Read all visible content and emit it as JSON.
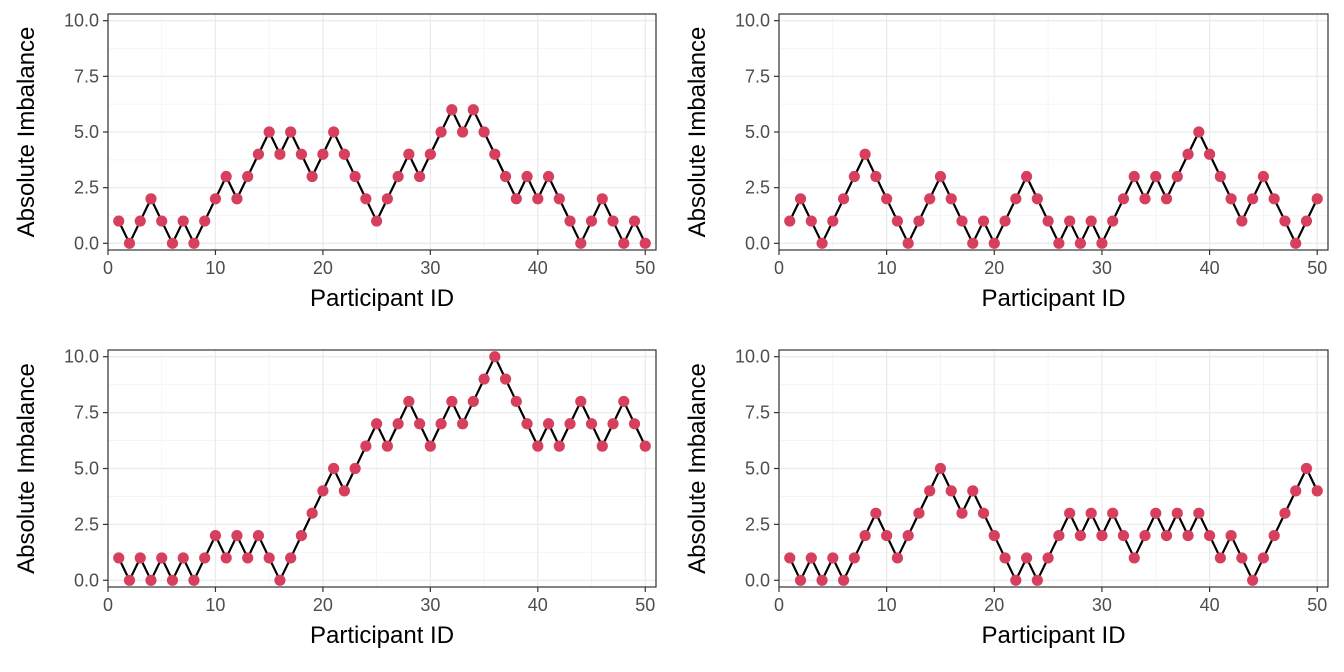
{
  "chart_data": [
    {
      "type": "line",
      "xlabel": "Participant ID",
      "ylabel": "Absolute Imbalance",
      "xlim": [
        0,
        51
      ],
      "ylim": [
        -0.3,
        10.3
      ],
      "x_ticks": [
        0,
        10,
        20,
        30,
        40,
        50
      ],
      "y_ticks": [
        0.0,
        2.5,
        5.0,
        7.5,
        10.0
      ],
      "y_tick_labels": [
        "0.0",
        "2.5",
        "5.0",
        "7.5",
        "10.0"
      ],
      "grid": true,
      "line_color": "#000000",
      "point_color": "#d6405e",
      "values": [
        1,
        0,
        1,
        2,
        1,
        0,
        1,
        0,
        1,
        2,
        3,
        2,
        3,
        4,
        5,
        4,
        5,
        4,
        3,
        4,
        5,
        4,
        3,
        2,
        1,
        2,
        3,
        4,
        3,
        4,
        5,
        6,
        5,
        6,
        5,
        4,
        3,
        2,
        3,
        2,
        3,
        2,
        1,
        0,
        1,
        2,
        1,
        0,
        1,
        0
      ]
    },
    {
      "type": "line",
      "xlabel": "Participant ID",
      "ylabel": "Absolute Imbalance",
      "xlim": [
        0,
        51
      ],
      "ylim": [
        -0.3,
        10.3
      ],
      "x_ticks": [
        0,
        10,
        20,
        30,
        40,
        50
      ],
      "y_ticks": [
        0.0,
        2.5,
        5.0,
        7.5,
        10.0
      ],
      "y_tick_labels": [
        "0.0",
        "2.5",
        "5.0",
        "7.5",
        "10.0"
      ],
      "grid": true,
      "line_color": "#000000",
      "point_color": "#d6405e",
      "values": [
        1,
        2,
        1,
        0,
        1,
        2,
        3,
        4,
        3,
        2,
        1,
        0,
        1,
        2,
        3,
        2,
        1,
        0,
        1,
        0,
        1,
        2,
        3,
        2,
        1,
        0,
        1,
        0,
        1,
        0,
        1,
        2,
        3,
        2,
        3,
        2,
        3,
        4,
        5,
        4,
        3,
        2,
        1,
        2,
        3,
        2,
        1,
        0,
        1,
        2
      ]
    },
    {
      "type": "line",
      "xlabel": "Participant ID",
      "ylabel": "Absolute Imbalance",
      "xlim": [
        0,
        51
      ],
      "ylim": [
        -0.3,
        10.3
      ],
      "x_ticks": [
        0,
        10,
        20,
        30,
        40,
        50
      ],
      "y_ticks": [
        0.0,
        2.5,
        5.0,
        7.5,
        10.0
      ],
      "y_tick_labels": [
        "0.0",
        "2.5",
        "5.0",
        "7.5",
        "10.0"
      ],
      "grid": true,
      "line_color": "#000000",
      "point_color": "#d6405e",
      "values": [
        1,
        0,
        1,
        0,
        1,
        0,
        1,
        0,
        1,
        2,
        1,
        2,
        1,
        2,
        1,
        0,
        1,
        2,
        3,
        4,
        5,
        4,
        5,
        6,
        7,
        6,
        7,
        8,
        7,
        6,
        7,
        8,
        7,
        8,
        9,
        10,
        9,
        8,
        7,
        6,
        7,
        6,
        7,
        8,
        7,
        6,
        7,
        8,
        7,
        6
      ]
    },
    {
      "type": "line",
      "xlabel": "Participant ID",
      "ylabel": "Absolute Imbalance",
      "xlim": [
        0,
        51
      ],
      "ylim": [
        -0.3,
        10.3
      ],
      "x_ticks": [
        0,
        10,
        20,
        30,
        40,
        50
      ],
      "y_ticks": [
        0.0,
        2.5,
        5.0,
        7.5,
        10.0
      ],
      "y_tick_labels": [
        "0.0",
        "2.5",
        "5.0",
        "7.5",
        "10.0"
      ],
      "grid": true,
      "line_color": "#000000",
      "point_color": "#d6405e",
      "values": [
        1,
        0,
        1,
        0,
        1,
        0,
        1,
        2,
        3,
        2,
        1,
        2,
        3,
        4,
        5,
        4,
        3,
        4,
        3,
        2,
        1,
        0,
        1,
        0,
        1,
        2,
        3,
        2,
        3,
        2,
        3,
        2,
        1,
        2,
        3,
        2,
        3,
        2,
        3,
        2,
        1,
        2,
        1,
        0,
        1,
        2,
        3,
        4,
        5,
        4
      ]
    }
  ]
}
